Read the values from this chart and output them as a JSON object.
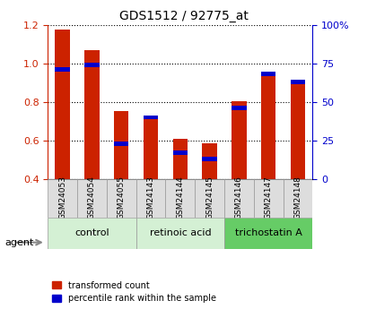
{
  "title": "GDS1512 / 92775_at",
  "samples": [
    "GSM24053",
    "GSM24054",
    "GSM24055",
    "GSM24143",
    "GSM24144",
    "GSM24145",
    "GSM24146",
    "GSM24147",
    "GSM24148"
  ],
  "transformed_count": [
    1.175,
    1.07,
    0.755,
    0.73,
    0.61,
    0.585,
    0.805,
    0.955,
    0.91
  ],
  "percentile_rank": [
    71,
    74,
    23,
    40,
    17,
    13,
    46,
    68,
    63
  ],
  "ylim_left": [
    0.4,
    1.2
  ],
  "ylim_right": [
    0,
    100
  ],
  "yticks_left": [
    0.4,
    0.6,
    0.8,
    1.0,
    1.2
  ],
  "yticks_right": [
    0,
    25,
    50,
    75,
    100
  ],
  "yticklabels_right": [
    "0",
    "25",
    "50",
    "75",
    "100%"
  ],
  "groups": [
    {
      "label": "control",
      "indices": [
        0,
        1,
        2
      ],
      "color": "#d4f0d4"
    },
    {
      "label": "retinoic acid",
      "indices": [
        3,
        4,
        5
      ],
      "color": "#d4f0d4"
    },
    {
      "label": "trichostatin A",
      "indices": [
        6,
        7,
        8
      ],
      "color": "#66cc66"
    }
  ],
  "bar_color_red": "#cc2200",
  "bar_color_blue": "#0000cc",
  "bar_width": 0.5,
  "tick_label_color_left": "#cc2200",
  "tick_label_color_right": "#0000cc",
  "agent_label": "agent",
  "legend_red": "transformed count",
  "legend_blue": "percentile rank within the sample",
  "base_value": 0.4
}
